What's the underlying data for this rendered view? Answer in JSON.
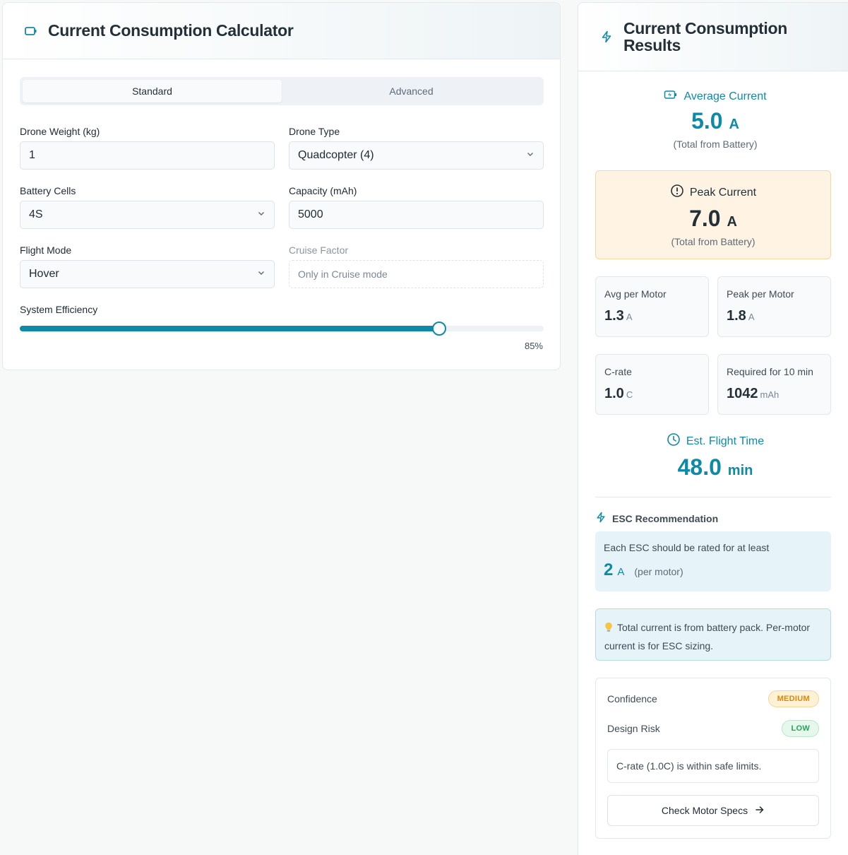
{
  "calculator": {
    "title": "Current Consumption Calculator",
    "tabs": [
      {
        "label": "Standard",
        "active": true
      },
      {
        "label": "Advanced",
        "active": false
      }
    ],
    "fields": {
      "drone_weight": {
        "label": "Drone Weight (kg)",
        "value": "1"
      },
      "drone_type": {
        "label": "Drone Type",
        "value": "Quadcopter (4)"
      },
      "battery_cells": {
        "label": "Battery Cells",
        "value": "4S"
      },
      "capacity": {
        "label": "Capacity (mAh)",
        "value": "5000"
      },
      "flight_mode": {
        "label": "Flight Mode",
        "value": "Hover"
      },
      "cruise_factor": {
        "label": "Cruise Factor",
        "placeholder": "Only in Cruise mode"
      }
    },
    "efficiency": {
      "label": "System Efficiency",
      "value": 85,
      "display": "85%"
    }
  },
  "results": {
    "title": "Current Consumption Results",
    "average_current": {
      "label": "Average Current",
      "value": "5.0",
      "unit": "A",
      "sub": "(Total from Battery)"
    },
    "peak_current": {
      "label": "Peak Current",
      "value": "7.0",
      "unit": "A",
      "sub": "(Total from Battery)"
    },
    "avg_per_motor": {
      "label": "Avg per Motor",
      "value": "1.3",
      "unit": "A"
    },
    "peak_per_motor": {
      "label": "Peak per Motor",
      "value": "1.8",
      "unit": "A"
    },
    "c_rate": {
      "label": "C-rate",
      "value": "1.0",
      "unit": "C"
    },
    "required": {
      "label": "Required for 10 min",
      "value": "1042",
      "unit": "mAh"
    },
    "flight_time": {
      "label": "Est. Flight Time",
      "value": "48.0",
      "unit": "min"
    },
    "esc": {
      "title": "ESC Recommendation",
      "text": "Each ESC should be rated for at least",
      "value": "2",
      "unit": "A",
      "per": "(per motor)"
    },
    "note": "Total current is from battery pack. Per-motor current is for ESC sizing.",
    "confidence": {
      "label": "Confidence",
      "badge": "MEDIUM"
    },
    "design_risk": {
      "label": "Design Risk",
      "badge": "LOW"
    },
    "risk_note": "C-rate (1.0C) is within safe limits.",
    "motor_button": "Check Motor Specs"
  },
  "colors": {
    "accent": "#0e8aa6",
    "warning_bg": "#fff4e4",
    "info_bg": "#e6f3f8"
  }
}
